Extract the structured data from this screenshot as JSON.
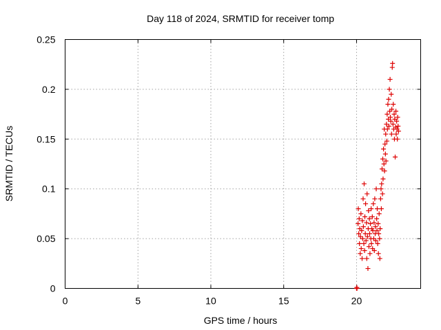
{
  "chart_data": {
    "type": "scatter",
    "title": "Day 118 of 2024, SRMTID for receiver tomp",
    "xlabel": "GPS time / hours",
    "ylabel": "SRMTID / TECUs",
    "xlim": [
      0,
      24.4
    ],
    "ylim": [
      0,
      0.25
    ],
    "xticks": [
      0,
      5,
      10,
      15,
      20
    ],
    "xtick_labels": [
      "0",
      "5",
      "10",
      "15",
      "20"
    ],
    "yticks": [
      0,
      0.05,
      0.1,
      0.15,
      0.2,
      0.25
    ],
    "ytick_labels": [
      "0",
      "0.05",
      "0.1",
      "0.15",
      "0.2",
      "0.25"
    ],
    "grid": true,
    "marker": "+",
    "color": "#dd0000",
    "series": [
      {
        "name": "SRMTID",
        "points": [
          [
            20.0,
            0.0
          ],
          [
            20.02,
            0.001
          ],
          [
            20.03,
            0.0
          ],
          [
            20.1,
            0.065
          ],
          [
            20.12,
            0.08
          ],
          [
            20.15,
            0.055
          ],
          [
            20.18,
            0.07
          ],
          [
            20.2,
            0.045
          ],
          [
            20.22,
            0.06
          ],
          [
            20.25,
            0.035
          ],
          [
            20.27,
            0.052
          ],
          [
            20.3,
            0.075
          ],
          [
            20.32,
            0.04
          ],
          [
            20.35,
            0.058
          ],
          [
            20.38,
            0.03
          ],
          [
            20.4,
            0.068
          ],
          [
            20.42,
            0.05
          ],
          [
            20.45,
            0.09
          ],
          [
            20.47,
            0.062
          ],
          [
            20.5,
            0.045
          ],
          [
            20.52,
            0.105
          ],
          [
            20.55,
            0.038
          ],
          [
            20.57,
            0.072
          ],
          [
            20.6,
            0.055
          ],
          [
            20.62,
            0.085
          ],
          [
            20.65,
            0.048
          ],
          [
            20.68,
            0.066
          ],
          [
            20.7,
            0.03
          ],
          [
            20.72,
            0.095
          ],
          [
            20.75,
            0.052
          ],
          [
            20.78,
            0.02
          ],
          [
            20.8,
            0.06
          ],
          [
            20.82,
            0.078
          ],
          [
            20.85,
            0.042
          ],
          [
            20.88,
            0.07
          ],
          [
            20.9,
            0.055
          ],
          [
            20.92,
            0.035
          ],
          [
            20.95,
            0.065
          ],
          [
            20.98,
            0.05
          ],
          [
            21.0,
            0.08
          ],
          [
            21.02,
            0.045
          ],
          [
            21.05,
            0.06
          ],
          [
            21.08,
            0.072
          ],
          [
            21.1,
            0.04
          ],
          [
            21.12,
            0.058
          ],
          [
            21.15,
            0.085
          ],
          [
            21.18,
            0.05
          ],
          [
            21.2,
            0.066
          ],
          [
            21.22,
            0.038
          ],
          [
            21.25,
            0.09
          ],
          [
            21.28,
            0.055
          ],
          [
            21.3,
            0.062
          ],
          [
            21.32,
            0.048
          ],
          [
            21.35,
            0.1
          ],
          [
            21.38,
            0.07
          ],
          [
            21.4,
            0.058
          ],
          [
            21.42,
            0.08
          ],
          [
            21.45,
            0.045
          ],
          [
            21.48,
            0.065
          ],
          [
            21.5,
            0.035
          ],
          [
            21.52,
            0.055
          ],
          [
            21.55,
            0.075
          ],
          [
            21.58,
            0.05
          ],
          [
            21.6,
            0.03
          ],
          [
            21.62,
            0.06
          ],
          [
            21.65,
            0.09
          ],
          [
            21.68,
            0.1
          ],
          [
            21.7,
            0.08
          ],
          [
            21.72,
            0.105
          ],
          [
            21.75,
            0.12
          ],
          [
            21.78,
            0.095
          ],
          [
            21.8,
            0.13
          ],
          [
            21.82,
            0.11
          ],
          [
            21.85,
            0.14
          ],
          [
            21.88,
            0.125
          ],
          [
            21.9,
            0.16
          ],
          [
            21.92,
            0.118
          ],
          [
            21.95,
            0.145
          ],
          [
            21.98,
            0.135
          ],
          [
            22.0,
            0.155
          ],
          [
            22.02,
            0.128
          ],
          [
            22.05,
            0.165
          ],
          [
            22.08,
            0.148
          ],
          [
            22.1,
            0.175
          ],
          [
            22.12,
            0.16
          ],
          [
            22.15,
            0.185
          ],
          [
            22.18,
            0.17
          ],
          [
            22.2,
            0.19
          ],
          [
            22.22,
            0.163
          ],
          [
            22.25,
            0.2
          ],
          [
            22.28,
            0.178
          ],
          [
            22.3,
            0.21
          ],
          [
            22.32,
            0.172
          ],
          [
            22.35,
            0.168
          ],
          [
            22.38,
            0.195
          ],
          [
            22.4,
            0.155
          ],
          [
            22.42,
            0.18
          ],
          [
            22.45,
            0.222
          ],
          [
            22.47,
            0.226
          ],
          [
            22.5,
            0.165
          ],
          [
            22.52,
            0.185
          ],
          [
            22.55,
            0.16
          ],
          [
            22.58,
            0.175
          ],
          [
            22.6,
            0.15
          ],
          [
            22.62,
            0.17
          ],
          [
            22.65,
            0.132
          ],
          [
            22.68,
            0.162
          ],
          [
            22.7,
            0.178
          ],
          [
            22.72,
            0.155
          ],
          [
            22.75,
            0.168
          ],
          [
            22.78,
            0.16
          ],
          [
            22.8,
            0.15
          ],
          [
            22.82,
            0.172
          ],
          [
            22.85,
            0.163
          ],
          [
            22.88,
            0.158
          ]
        ]
      }
    ]
  }
}
